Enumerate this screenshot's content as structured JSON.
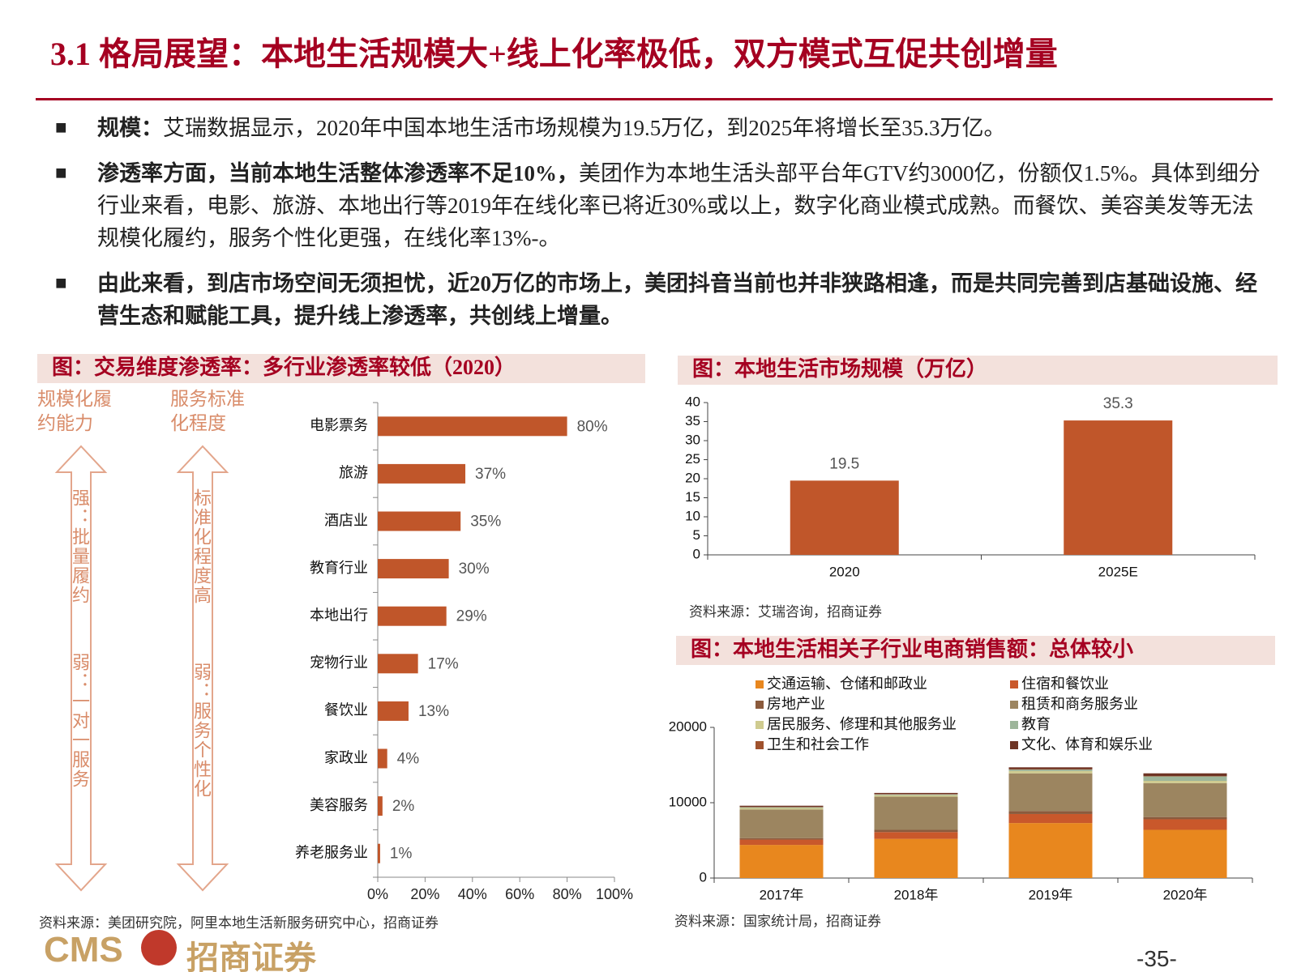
{
  "title": "3.1 格局展望：本地生活规模大+线上化率极低，双方模式互促共创增量",
  "bullets": [
    {
      "lead": "规模：",
      "text": "艾瑞数据显示，2020年中国本地生活市场规模为19.5万亿，到2025年将增长至35.3万亿。"
    },
    {
      "lead": "渗透率方面，当前本地生活整体渗透率不足10%，",
      "text": "美团作为本地生活头部平台年GTV约3000亿，份额仅1.5%。具体到细分行业来看，电影、旅游、本地出行等2019年在线化率已将近30%或以上，数字化商业模式成熟。而餐饮、美容美发等无法规模化履约，服务个性化更强，在线化率13%-。"
    },
    {
      "lead": "由此来看，到店市场空间无须担忧，近20万亿的市场上，美团抖音当前也并非狭路相逢，而是共同完善到店基础设施、经营生态和赋能工具，提升线上渗透率，共创线上增量。"
    }
  ],
  "chart_data": [
    {
      "type": "bar",
      "horizontal": true,
      "title": "图：交易维度渗透率：多行业渗透率较低（2020）",
      "categories": [
        "电影票务",
        "旅游",
        "酒店业",
        "教育行业",
        "本地出行",
        "宠物行业",
        "餐饮业",
        "家政业",
        "美容服务",
        "养老服务业"
      ],
      "values": [
        80,
        37,
        35,
        30,
        29,
        17,
        13,
        4,
        2,
        1
      ],
      "value_labels": [
        "80%",
        "37%",
        "35%",
        "30%",
        "29%",
        "17%",
        "13%",
        "4%",
        "2%",
        "1%"
      ],
      "color": "#C0562A",
      "xlim": [
        0,
        100
      ],
      "xticks": [
        {
          "value": 0,
          "label": "0%"
        },
        {
          "value": 20,
          "label": "20%"
        },
        {
          "value": 40,
          "label": "40%"
        },
        {
          "value": 60,
          "label": "60%"
        },
        {
          "value": 80,
          "label": "80%"
        },
        {
          "value": 100,
          "label": "100%"
        }
      ],
      "annotations": [
        {
          "heading": "规模化履约能力",
          "top": "强：批量履约",
          "bottom": "弱：一对一服务"
        },
        {
          "heading": "服务标准化程度",
          "top": "标准化程度高",
          "bottom": "弱：服务个性化"
        }
      ],
      "source": "资料来源：美团研究院，阿里本地生活新服务研究中心，招商证券"
    },
    {
      "type": "bar",
      "title": "图：本地生活市场规模（万亿）",
      "categories": [
        "2020",
        "2025E"
      ],
      "values": [
        19.5,
        35.3
      ],
      "color": "#C0562A",
      "ylim": [
        0,
        40
      ],
      "yticks": [
        0,
        5,
        10,
        15,
        20,
        25,
        30,
        35,
        40
      ],
      "source": "资料来源：艾瑞咨询，招商证券"
    },
    {
      "type": "bar",
      "stacked": true,
      "title": "图：本地生活相关子行业电商销售额：总体较小",
      "categories": [
        "2017年",
        "2018年",
        "2019年",
        "2020年"
      ],
      "series": [
        {
          "name": "交通运输、仓储和邮政业",
          "color": "#E8871E",
          "values": [
            4400,
            5200,
            7300,
            6400
          ]
        },
        {
          "name": "住宿和餐饮业",
          "color": "#C9582B",
          "values": [
            700,
            900,
            1200,
            1400
          ]
        },
        {
          "name": "房地产业",
          "color": "#8B5A3C",
          "values": [
            200,
            300,
            400,
            300
          ]
        },
        {
          "name": "租赁和商务服务业",
          "color": "#9C8560",
          "values": [
            3800,
            4400,
            5000,
            4500
          ]
        },
        {
          "name": "居民服务、修理和其他服务业",
          "color": "#CFCB8F",
          "values": [
            200,
            200,
            300,
            300
          ]
        },
        {
          "name": "教育",
          "color": "#9DB59A",
          "values": [
            100,
            100,
            200,
            600
          ]
        },
        {
          "name": "卫生和社会工作",
          "color": "#A0522D",
          "values": [
            50,
            50,
            50,
            50
          ]
        },
        {
          "name": "文化、体育和娱乐业",
          "color": "#6E3424",
          "values": [
            150,
            150,
            250,
            350
          ]
        }
      ],
      "ylim": [
        0,
        20000
      ],
      "yticks": [
        0,
        10000,
        20000
      ],
      "source": "资料来源：国家统计局，招商证券"
    }
  ],
  "footer": {
    "logo": "CMS",
    "logo_cn": "招商证券",
    "page": "-35-"
  }
}
